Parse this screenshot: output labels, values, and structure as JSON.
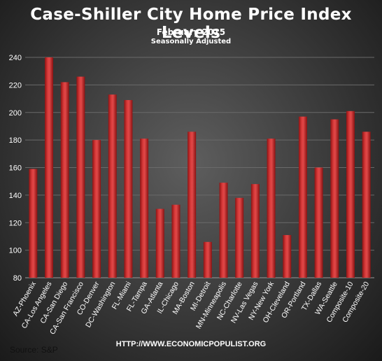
{
  "chart_data": {
    "type": "bar",
    "title": "Case-Shiller  City  Home  Price  Index  Levels",
    "subtitle": "February  2015",
    "subtitle2": "Seasonally  Adjusted",
    "categories": [
      "AZ-Phoenix",
      "CA-Los Angeles",
      "CA-San Diego",
      "CA-San Francisco",
      "CO-Denver",
      "DC-Washington",
      "FL-Miami",
      "FL-Tampa",
      "GA-Atlanta",
      "IL-Chicago",
      "MA-Boston",
      "MI-Detroit",
      "MN-Minneapolis",
      "NC-Charlotte",
      "NV-Las Vegas",
      "NY-New York",
      "OH-Cleveland",
      "OR-Portland",
      "TX-Dallas",
      "WA-Seattle",
      "Composite-10",
      "Composite-20"
    ],
    "values": [
      159,
      240,
      222,
      226,
      180,
      213,
      209,
      181,
      130,
      133,
      186,
      106,
      149,
      138,
      148,
      181,
      111,
      197,
      160,
      195,
      201,
      186
    ],
    "ylim": [
      80,
      240
    ],
    "yticks": [
      80,
      100,
      120,
      140,
      160,
      180,
      200,
      220,
      240
    ],
    "grid": true,
    "bar_color": "#cc2222",
    "source": "Source:  S&P",
    "url": "HTTP://WWW.ECONOMICPOPULIST.ORG"
  }
}
